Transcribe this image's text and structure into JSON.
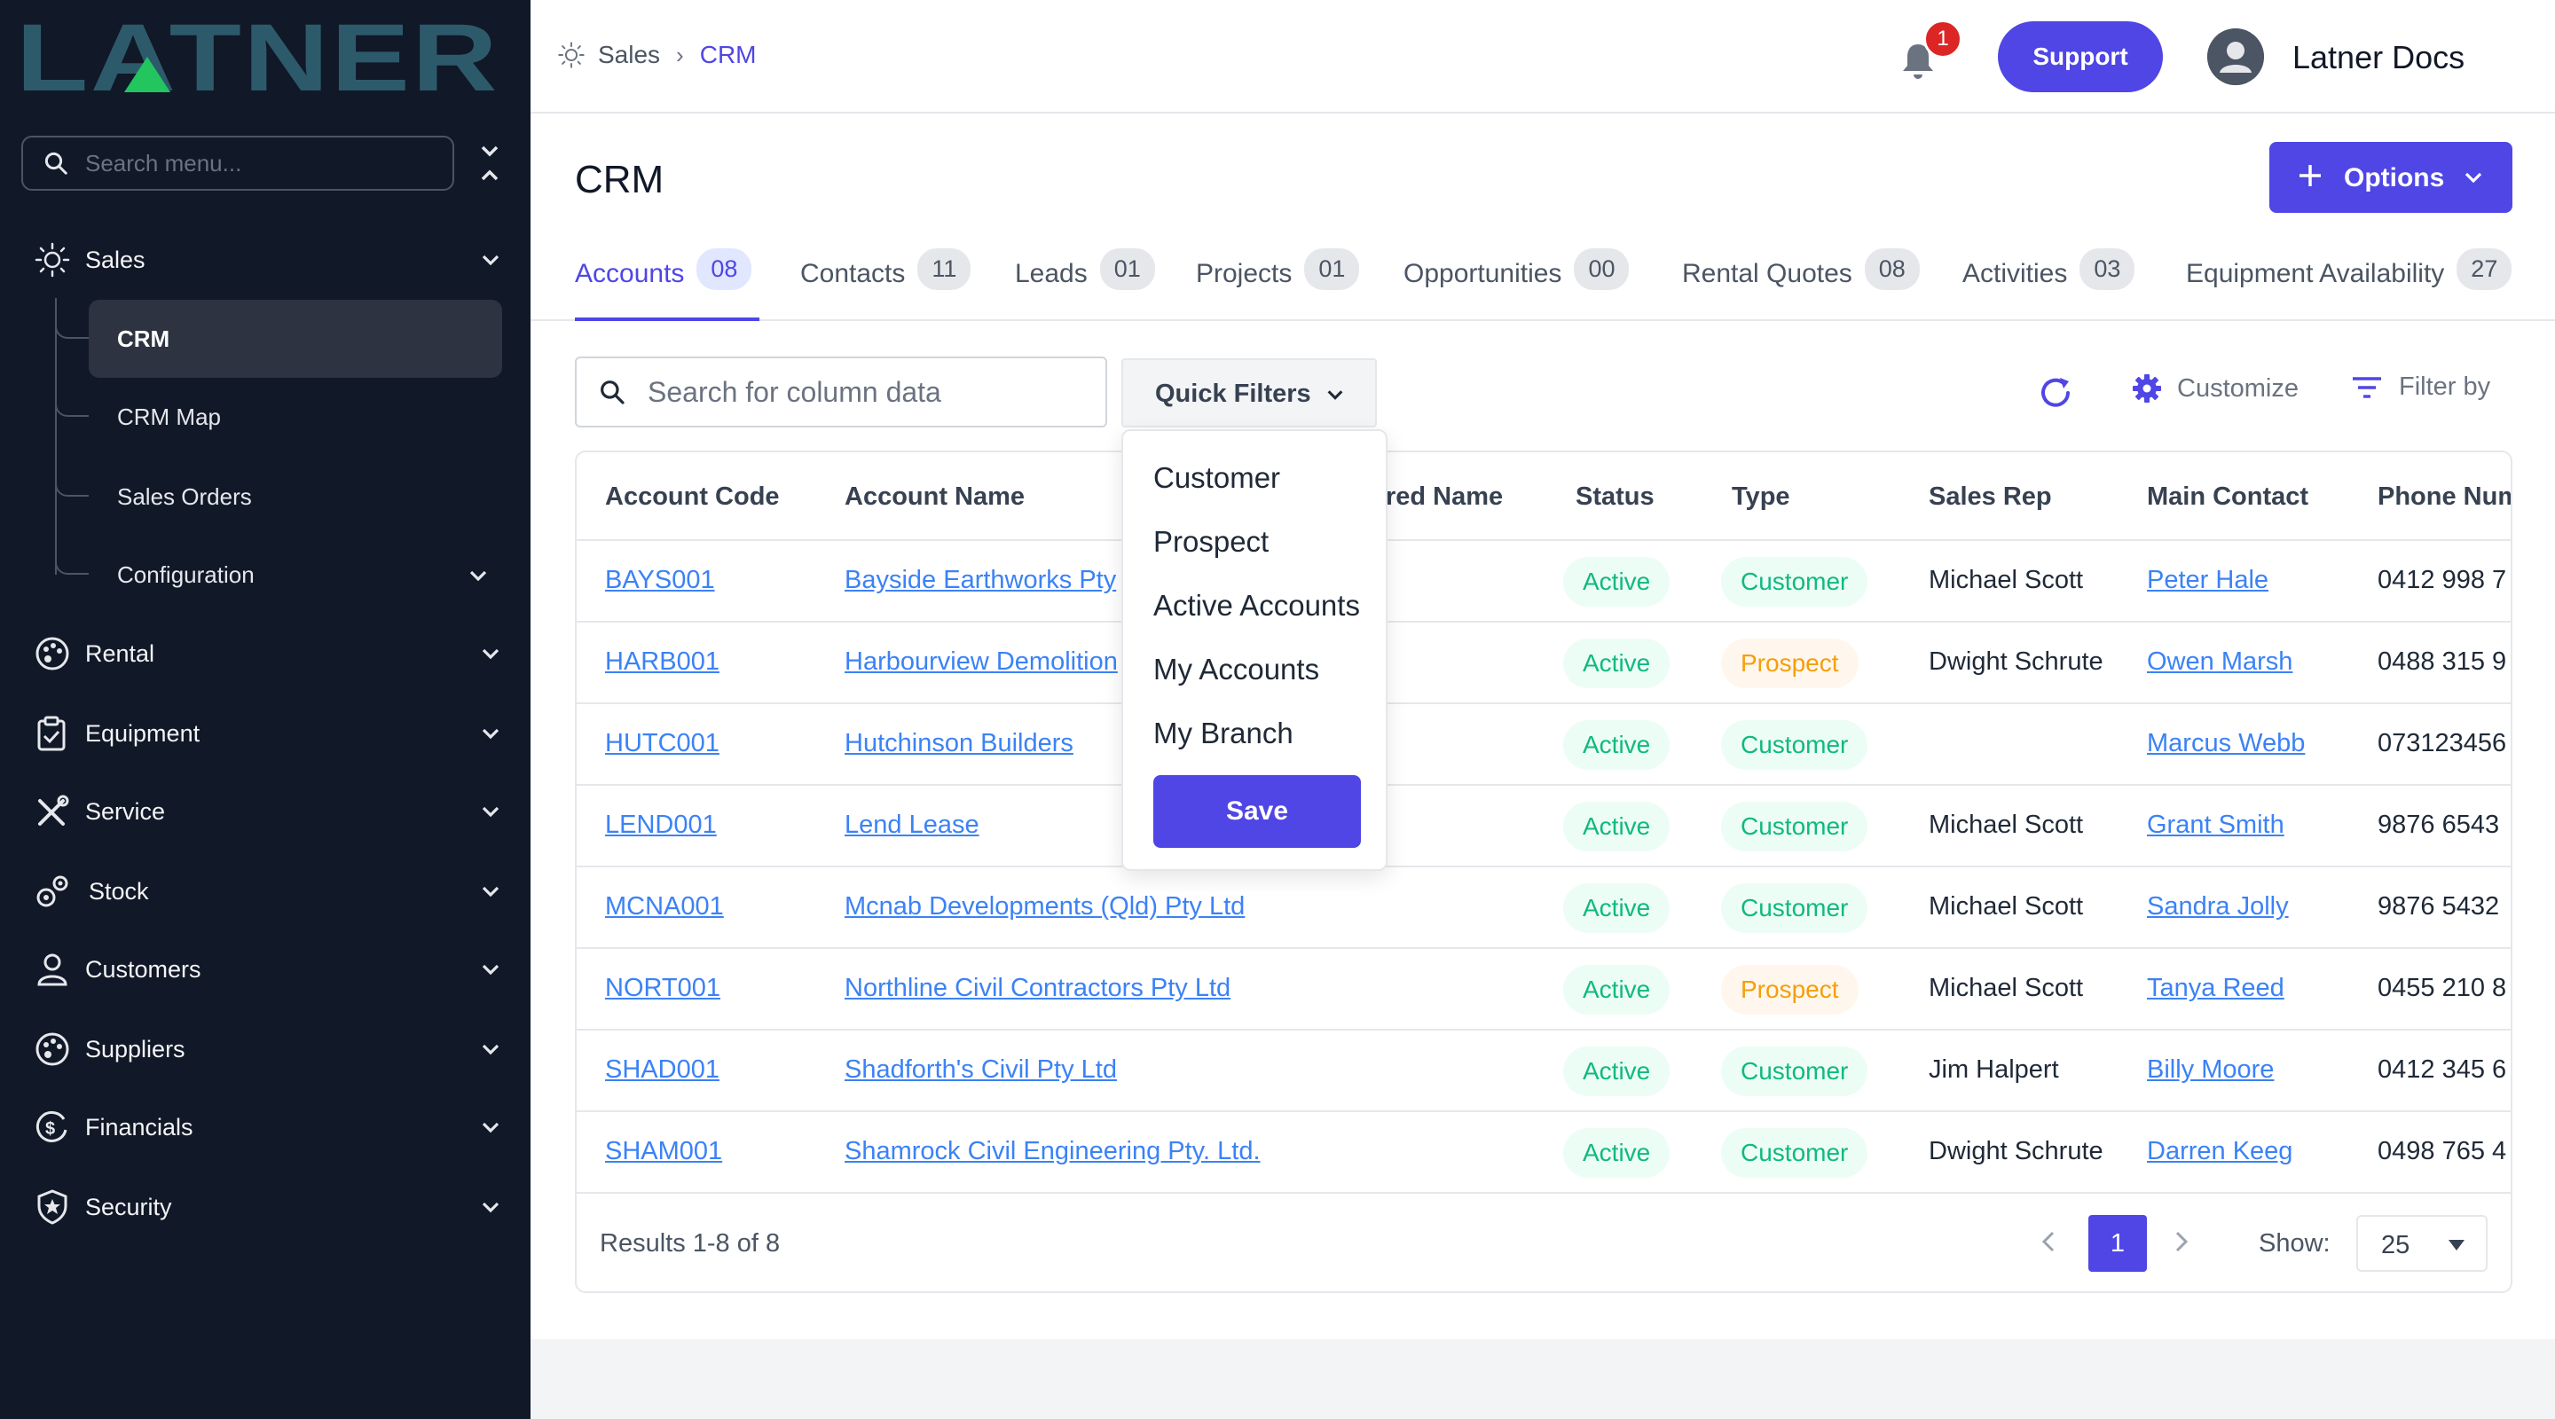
{
  "sidebar": {
    "logo_text": "LATNER",
    "search_placeholder": "Search menu...",
    "items": [
      {
        "label": "Sales",
        "icon": "sun-icon"
      },
      {
        "label": "Rental",
        "icon": "palette-icon"
      },
      {
        "label": "Equipment",
        "icon": "clipboard-icon"
      },
      {
        "label": "Service",
        "icon": "tools-icon"
      },
      {
        "label": "Stock",
        "icon": "gears-icon"
      },
      {
        "label": "Customers",
        "icon": "user-icon"
      },
      {
        "label": "Suppliers",
        "icon": "palette-icon"
      },
      {
        "label": "Financials",
        "icon": "dollar-circle-icon"
      },
      {
        "label": "Security",
        "icon": "shield-star-icon"
      }
    ],
    "sub_items": [
      {
        "label": "CRM"
      },
      {
        "label": "CRM Map"
      },
      {
        "label": "Sales Orders"
      },
      {
        "label": "Configuration"
      }
    ]
  },
  "header": {
    "breadcrumb": [
      "Sales",
      "CRM"
    ],
    "notification_count": "1",
    "support_label": "Support",
    "user_name": "Latner Docs"
  },
  "page": {
    "title": "CRM",
    "options_label": "Options"
  },
  "tabs": [
    {
      "label": "Accounts",
      "count": "08"
    },
    {
      "label": "Contacts",
      "count": "11"
    },
    {
      "label": "Leads",
      "count": "01"
    },
    {
      "label": "Projects",
      "count": "01"
    },
    {
      "label": "Opportunities",
      "count": "00"
    },
    {
      "label": "Rental Quotes",
      "count": "08"
    },
    {
      "label": "Activities",
      "count": "03"
    },
    {
      "label": "Equipment Availability",
      "count": "27"
    }
  ],
  "toolbar": {
    "search_placeholder": "Search for column data",
    "quick_filters_label": "Quick Filters",
    "customize_label": "Customize",
    "filter_by_label": "Filter by"
  },
  "quick_filters": {
    "options": [
      "Customer",
      "Prospect",
      "Active Accounts",
      "My Accounts",
      "My Branch"
    ],
    "save_label": "Save"
  },
  "table": {
    "columns": [
      "Account Code",
      "Account Name",
      "red Name",
      "Status",
      "Type",
      "Sales Rep",
      "Main Contact",
      "Phone Num"
    ],
    "rows": [
      {
        "code": "BAYS001",
        "name": "Bayside Earthworks Pty",
        "status": "Active",
        "type": "Customer",
        "rep": "Michael Scott",
        "contact": "Peter Hale",
        "phone": "0412 998 7"
      },
      {
        "code": "HARB001",
        "name": "Harbourview Demolition",
        "status": "Active",
        "type": "Prospect",
        "rep": "Dwight Schrute",
        "contact": "Owen Marsh",
        "phone": "0488 315 9"
      },
      {
        "code": "HUTC001",
        "name": "Hutchinson Builders",
        "status": "Active",
        "type": "Customer",
        "rep": "",
        "contact": "Marcus Webb",
        "phone": "073123456"
      },
      {
        "code": "LEND001",
        "name": "Lend Lease",
        "status": "Active",
        "type": "Customer",
        "rep": "Michael Scott",
        "contact": "Grant Smith",
        "phone": "9876 6543"
      },
      {
        "code": "MCNA001",
        "name": "Mcnab Developments (Qld) Pty Ltd",
        "status": "Active",
        "type": "Customer",
        "rep": "Michael Scott",
        "contact": "Sandra Jolly",
        "phone": "9876 5432"
      },
      {
        "code": "NORT001",
        "name": "Northline Civil Contractors Pty Ltd",
        "status": "Active",
        "type": "Prospect",
        "rep": "Michael Scott",
        "contact": "Tanya Reed",
        "phone": "0455 210 8"
      },
      {
        "code": "SHAD001",
        "name": "Shadforth's Civil Pty Ltd",
        "status": "Active",
        "type": "Customer",
        "rep": "Jim Halpert",
        "contact": "Billy Moore",
        "phone": "0412 345 6"
      },
      {
        "code": "SHAM001",
        "name": "Shamrock Civil Engineering Pty. Ltd.",
        "status": "Active",
        "type": "Customer",
        "rep": "Dwight Schrute",
        "contact": "Darren Keeg",
        "phone": "0498 765 4"
      }
    ],
    "results_text": "Results 1-8 of 8",
    "page": "1",
    "show_label": "Show:",
    "page_size": "25"
  },
  "colors": {
    "accent": "#4f46e5",
    "sidebar_bg": "#111827",
    "link": "#3b82f6",
    "active_green": "#10b981",
    "prospect_orange": "#f59e0b"
  }
}
